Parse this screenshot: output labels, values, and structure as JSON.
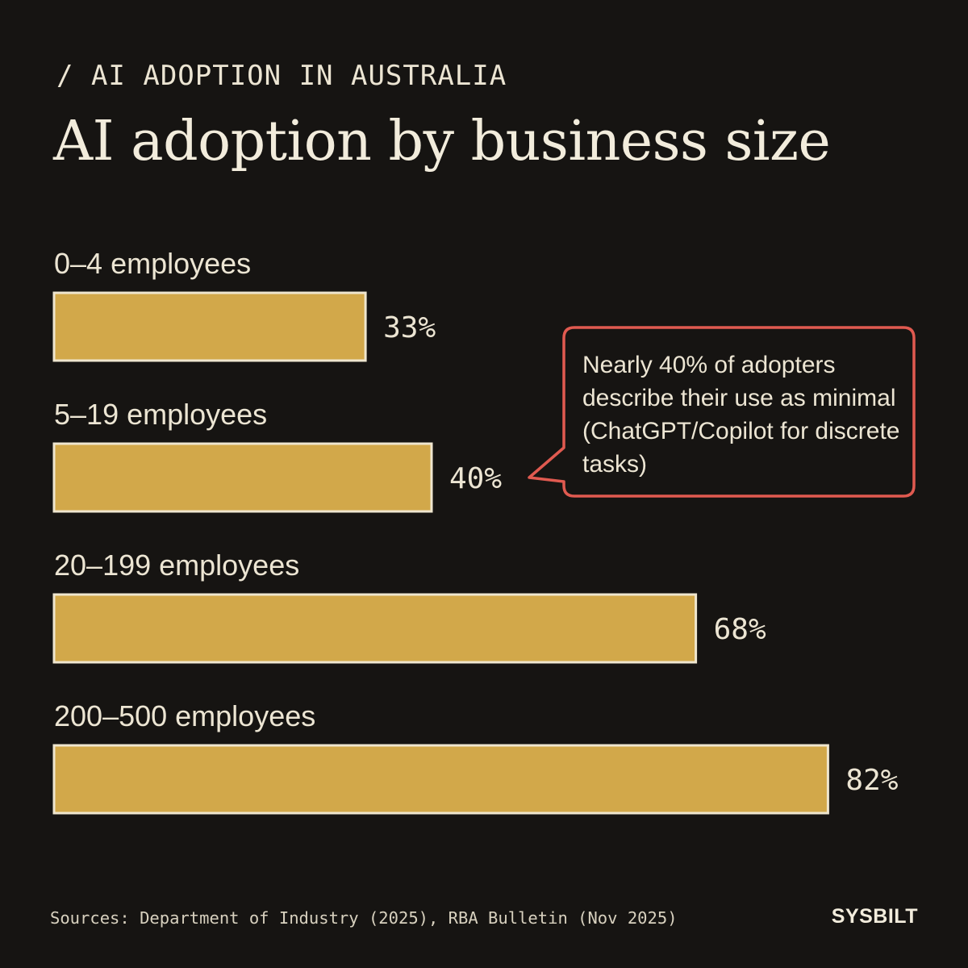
{
  "header": {
    "eyebrow": "/ AI ADOPTION IN AUSTRALIA",
    "title": "AI adoption by business size"
  },
  "chart_data": {
    "type": "bar",
    "orientation": "horizontal",
    "categories": [
      "0–4 employees",
      "5–19 employees",
      "20–199 employees",
      "200–500 employees"
    ],
    "values": [
      33,
      40,
      68,
      82
    ],
    "value_labels": [
      "33%",
      "40%",
      "68%",
      "82%"
    ],
    "unit": "%",
    "xlim": [
      0,
      100
    ],
    "grid": false,
    "colors": {
      "bar_fill": "#d2a84a",
      "bar_outline": "#efe6cf",
      "callout_border": "#e05a50",
      "background": "#161412",
      "text": "#ece5d3"
    },
    "annotations": [
      {
        "target": "5–19 employees",
        "text": "Nearly 40% of adopters describe their use as minimal (ChatGPT/Copilot for discrete tasks)"
      }
    ]
  },
  "footer": {
    "sources": "Sources: Department of Industry (2025), RBA Bulletin (Nov 2025)",
    "brand": "SYSBILT"
  }
}
